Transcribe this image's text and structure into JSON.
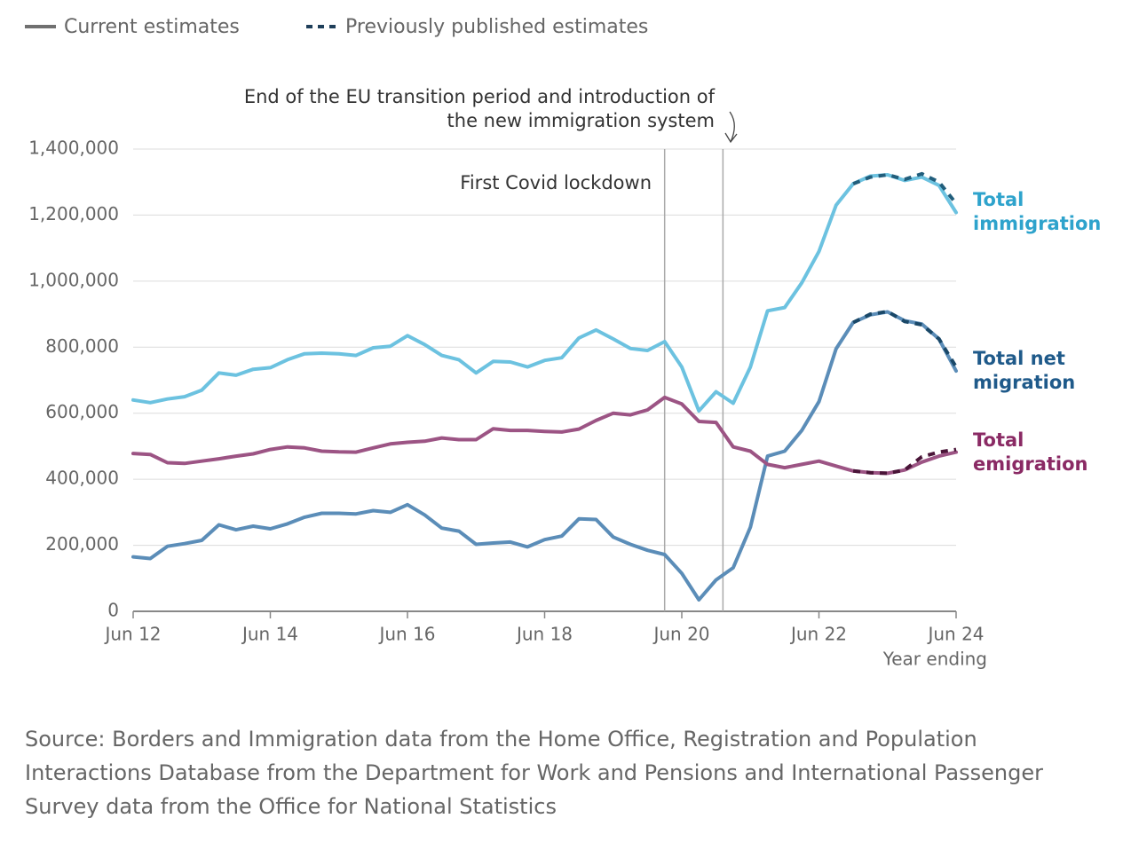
{
  "chart_data": {
    "type": "line",
    "legend": [
      "Current estimates",
      "Previously published estimates"
    ],
    "legend_colors": [
      "#707070",
      "#1f3f5a"
    ],
    "x_label": "Year ending",
    "categories": [
      "Jun 12",
      null,
      null,
      null,
      null,
      null,
      null,
      null,
      "Jun 14",
      null,
      null,
      null,
      null,
      null,
      null,
      null,
      "Jun 16",
      null,
      null,
      null,
      null,
      null,
      null,
      null,
      "Jun 18",
      null,
      null,
      null,
      null,
      null,
      null,
      null,
      "Jun 20",
      null,
      null,
      null,
      null,
      null,
      null,
      null,
      "Jun 22",
      null,
      null,
      null,
      null,
      null,
      null,
      null,
      "Jun 24"
    ],
    "ylim": [
      0,
      1400000
    ],
    "yticks": [
      0,
      {
        "value": 200000,
        "label": "200,000"
      },
      {
        "value": 400000,
        "label": "400,000"
      },
      {
        "value": 600000,
        "label": "600,000"
      },
      {
        "value": 800000,
        "label": "800,000"
      },
      {
        "value": 1000000,
        "label": "1,000,000"
      },
      {
        "value": 1200000,
        "label": "1,200,000"
      },
      {
        "value": 1400000,
        "label": "1,400,000"
      }
    ],
    "grid": true,
    "series": [
      {
        "name": "Total immigration",
        "color": "#6cc2e0",
        "label_color": "#2ea3cc",
        "values": [
          640000,
          632000,
          643000,
          650000,
          670000,
          722000,
          715000,
          733000,
          738000,
          762000,
          780000,
          782000,
          780000,
          775000,
          798000,
          803000,
          835000,
          808000,
          775000,
          762000,
          722000,
          757000,
          755000,
          740000,
          760000,
          768000,
          828000,
          852000,
          825000,
          796000,
          790000,
          817000,
          740000,
          607000,
          665000,
          630000,
          740000,
          910000,
          920000,
          995000,
          1090000,
          1230000,
          1295000,
          1318000,
          1322000,
          1305000,
          1315000,
          1290000,
          1208000
        ],
        "previous": {
          "color": "#215e7c",
          "values": [
            null,
            null,
            null,
            null,
            null,
            null,
            null,
            null,
            null,
            null,
            null,
            null,
            null,
            null,
            null,
            null,
            null,
            null,
            null,
            null,
            null,
            null,
            null,
            null,
            null,
            null,
            null,
            null,
            null,
            null,
            null,
            null,
            null,
            null,
            null,
            null,
            null,
            null,
            null,
            null,
            null,
            null,
            1295000,
            1315000,
            1322000,
            1308000,
            1325000,
            1300000,
            1235000
          ]
        }
      },
      {
        "name": "Total net migration",
        "color": "#5b8db8",
        "label_color": "#1f5a8a",
        "values": [
          165000,
          160000,
          197000,
          205000,
          215000,
          262000,
          247000,
          258000,
          250000,
          265000,
          285000,
          297000,
          297000,
          295000,
          305000,
          300000,
          323000,
          292000,
          252000,
          243000,
          203000,
          207000,
          210000,
          195000,
          217000,
          228000,
          280000,
          278000,
          225000,
          203000,
          185000,
          172000,
          115000,
          35000,
          95000,
          132000,
          255000,
          470000,
          485000,
          548000,
          635000,
          795000,
          875000,
          898000,
          907000,
          880000,
          870000,
          825000,
          728000
        ],
        "previous": {
          "color": "#1a4868",
          "values": [
            null,
            null,
            null,
            null,
            null,
            null,
            null,
            null,
            null,
            null,
            null,
            null,
            null,
            null,
            null,
            null,
            null,
            null,
            null,
            null,
            null,
            null,
            null,
            null,
            null,
            null,
            null,
            null,
            null,
            null,
            null,
            null,
            null,
            null,
            null,
            null,
            null,
            null,
            null,
            null,
            null,
            null,
            875000,
            900000,
            908000,
            878000,
            868000,
            825000,
            740000
          ]
        }
      },
      {
        "name": "Total emigration",
        "color": "#9c5484",
        "label_color": "#8a2a64",
        "values": [
          478000,
          475000,
          450000,
          448000,
          455000,
          462000,
          470000,
          477000,
          490000,
          498000,
          495000,
          485000,
          483000,
          482000,
          495000,
          507000,
          512000,
          515000,
          525000,
          520000,
          520000,
          553000,
          548000,
          548000,
          545000,
          543000,
          552000,
          578000,
          600000,
          595000,
          610000,
          648000,
          628000,
          575000,
          572000,
          498000,
          485000,
          445000,
          435000,
          445000,
          455000,
          440000,
          425000,
          420000,
          418000,
          428000,
          452000,
          470000,
          482000
        ],
        "previous": {
          "color": "#4a1538",
          "values": [
            null,
            null,
            null,
            null,
            null,
            null,
            null,
            null,
            null,
            null,
            null,
            null,
            null,
            null,
            null,
            null,
            null,
            null,
            null,
            null,
            null,
            null,
            null,
            null,
            null,
            null,
            null,
            null,
            null,
            null,
            null,
            null,
            null,
            null,
            null,
            null,
            null,
            null,
            null,
            null,
            null,
            null,
            425000,
            420000,
            418000,
            428000,
            468000,
            482000,
            490000
          ]
        }
      }
    ],
    "annotations": [
      {
        "text": "First Covid lockdown"
      },
      {
        "text": "End of the EU transition period and introduction of the new immigration system"
      }
    ],
    "source": "Source: Borders and Immigration data from the Home Office, Registration and Population Interactions Database from the Department for Work and Pensions and International Passenger Survey data from the Office for National Statistics"
  }
}
